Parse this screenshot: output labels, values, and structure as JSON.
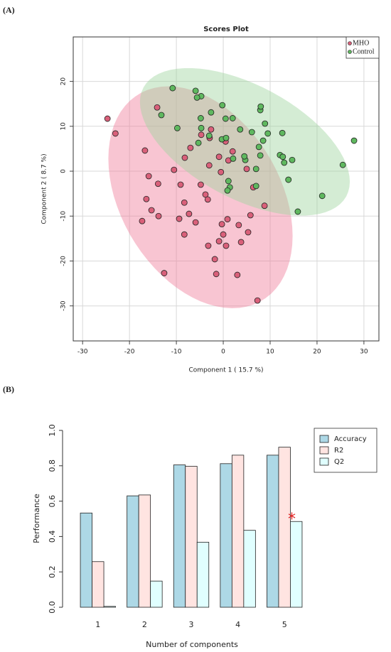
{
  "chart_data": [
    {
      "type": "scatter",
      "panel_label": "(A)",
      "title": "Scores Plot",
      "xlabel": "Component 1 ( 15.7 %)",
      "ylabel": "Component 2 ( 8.7 %)",
      "xlim": [
        -32,
        33.2
      ],
      "ylim": [
        -37.8,
        29.9
      ],
      "xticks": [
        -30,
        -20,
        -10,
        0,
        10,
        20,
        30
      ],
      "yticks": [
        -30,
        -20,
        -10,
        0,
        10,
        20
      ],
      "grid": true,
      "legend": "top-right",
      "confidence_ellipse": true,
      "series": [
        {
          "name": "MHO",
          "color": "#d9607a",
          "ellipse_color": "#f07f9c",
          "x": [
            -24.7,
            -23.0,
            -14.1,
            -16.7,
            -15.9,
            -13.9,
            -16.4,
            -15.3,
            -17.3,
            -13.8,
            -12.6,
            -10.5,
            -9.1,
            -8.3,
            -7.3,
            -9.4,
            -5.9,
            -8.3,
            -8.2,
            -4.8,
            -3.8,
            -3.3,
            -4.7,
            -7.0,
            -2.6,
            -2.9,
            -3.0,
            -0.9,
            -0.5,
            1.1,
            0.5,
            -3.2,
            -0.9,
            0.6,
            -1.8,
            -1.5,
            -0.3,
            0.9,
            0.0,
            3.3,
            3.0,
            3.8,
            5.3,
            5.8,
            5.0,
            6.4,
            8.8,
            7.3,
            2.0
          ],
          "y": [
            11.7,
            8.4,
            14.2,
            4.6,
            -1.1,
            -2.8,
            -6.2,
            -8.7,
            -11.1,
            -10.0,
            -22.7,
            0.3,
            -3.0,
            -7.0,
            -9.5,
            -10.6,
            -11.4,
            -14.1,
            3.0,
            -3.0,
            -5.2,
            -6.3,
            8.1,
            5.2,
            9.3,
            7.4,
            1.3,
            3.2,
            -0.2,
            2.4,
            6.6,
            -16.6,
            -15.6,
            -16.6,
            -19.6,
            -22.9,
            -11.8,
            -10.7,
            -14.1,
            -12.0,
            -23.1,
            -15.8,
            -13.6,
            -9.8,
            0.5,
            -3.6,
            -7.7,
            -28.8,
            4.4
          ]
        },
        {
          "name": "Control",
          "color": "#5fb85f",
          "ellipse_color": "#9fd49f",
          "x": [
            -10.8,
            -5.9,
            -4.7,
            -5.6,
            -13.2,
            -9.8,
            -4.8,
            -4.7,
            -2.6,
            -0.2,
            0.5,
            2.0,
            -3.0,
            -5.3,
            -0.3,
            0.6,
            3.6,
            6.1,
            7.9,
            8.0,
            8.9,
            9.5,
            8.5,
            7.6,
            7.9,
            4.7,
            4.5,
            1.1,
            1.4,
            0.9,
            2.1,
            7.0,
            7.0,
            12.6,
            12.1,
            12.7,
            13.0,
            13.9,
            14.7,
            15.9,
            21.1,
            25.5,
            27.9
          ],
          "y": [
            18.5,
            17.9,
            16.7,
            16.4,
            12.5,
            9.6,
            11.8,
            9.6,
            13.1,
            14.7,
            11.7,
            11.8,
            7.9,
            6.3,
            7.1,
            7.4,
            9.3,
            8.7,
            13.6,
            14.4,
            10.6,
            8.4,
            6.8,
            5.4,
            3.5,
            2.5,
            3.3,
            -2.2,
            -3.6,
            -4.3,
            2.8,
            -3.3,
            0.5,
            8.5,
            3.6,
            3.2,
            1.9,
            -1.9,
            2.5,
            -9.0,
            -5.5,
            1.4,
            6.8
          ]
        }
      ]
    },
    {
      "type": "bar",
      "panel_label": "(B)",
      "xlabel": "Number of components",
      "ylabel": "Performance",
      "categories": [
        "1",
        "2",
        "3",
        "4",
        "5"
      ],
      "ylim": [
        0,
        1
      ],
      "yticks": [
        {
          "value": 0,
          "label": "0.0"
        },
        {
          "value": 0.2,
          "label": "0.2"
        },
        {
          "value": 0.4,
          "label": "0.4"
        },
        {
          "value": 0.6,
          "label": "0.6"
        },
        {
          "value": 0.8,
          "label": "0.8"
        },
        {
          "value": 1,
          "label": "1.0"
        }
      ],
      "legend": "top-right",
      "annotation": "*",
      "annotation_series": "Q2",
      "annotation_category": "5",
      "annotation_color": "#e02020",
      "series": [
        {
          "name": "Accuracy",
          "color": "#add8e6",
          "values": [
            0.533,
            0.63,
            0.805,
            0.812,
            0.86
          ]
        },
        {
          "name": "R2",
          "color": "#ffe4e1",
          "values": [
            0.258,
            0.635,
            0.797,
            0.86,
            0.905
          ]
        },
        {
          "name": "Q2",
          "color": "#e0ffff",
          "values": [
            0.005,
            0.148,
            0.368,
            0.435,
            0.485
          ]
        }
      ]
    }
  ]
}
